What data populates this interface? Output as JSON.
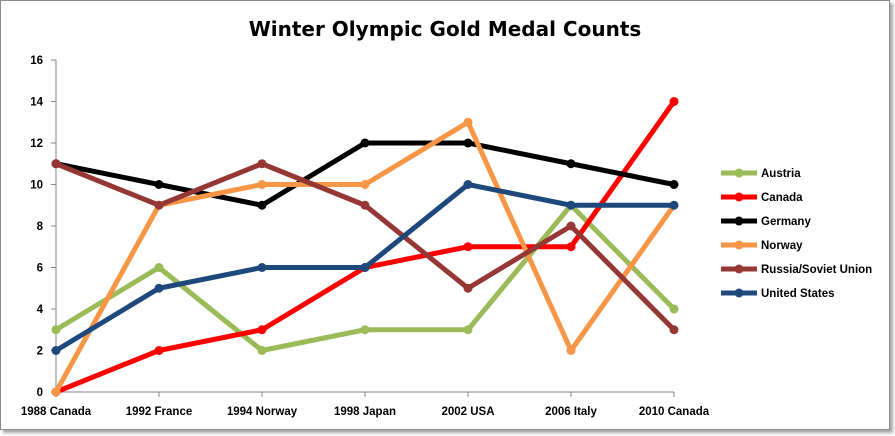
{
  "chart_data": {
    "type": "line",
    "title": "Winter Olympic Gold Medal Counts",
    "xlabel": "",
    "ylabel": "",
    "categories": [
      "1988 Canada",
      "1992 France",
      "1994 Norway",
      "1998 Japan",
      "2002 USA",
      "2006 Italy",
      "2010 Canada"
    ],
    "ylim": [
      0,
      16
    ],
    "yticks": [
      "0",
      "2",
      "4",
      "6",
      "8",
      "10",
      "12",
      "14",
      "16"
    ],
    "grid": false,
    "legend_position": "right",
    "series": [
      {
        "name": "Austria",
        "color": "#9bbb59",
        "values": [
          3,
          6,
          2,
          3,
          3,
          9,
          4
        ]
      },
      {
        "name": "Canada",
        "color": "#ff0000",
        "values": [
          0,
          2,
          3,
          6,
          7,
          7,
          14
        ]
      },
      {
        "name": "Germany",
        "color": "#000000",
        "values": [
          11,
          10,
          9,
          12,
          12,
          11,
          10
        ]
      },
      {
        "name": "Norway",
        "color": "#f79646",
        "values": [
          0,
          9,
          10,
          10,
          13,
          2,
          9
        ]
      },
      {
        "name": "Russia/Soviet Union",
        "color": "#953735",
        "values": [
          11,
          9,
          11,
          9,
          5,
          8,
          3
        ]
      },
      {
        "name": "United States",
        "color": "#1f497d",
        "values": [
          2,
          5,
          6,
          6,
          10,
          9,
          9
        ]
      }
    ]
  }
}
